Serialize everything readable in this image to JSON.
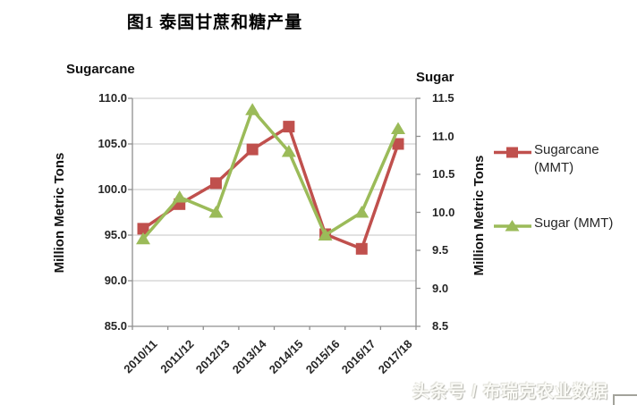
{
  "title": "图1  泰国甘蔗和糖产量",
  "watermark": "头条号 / 布瑞克农业数据",
  "legend": {
    "sugarcane_label": "Sugarcane (MMT)",
    "sugar_label": "Sugar (MMT)"
  },
  "colors": {
    "sugarcane": "#c0504d",
    "sugar": "#9bbb59",
    "gridline": "#c6c6c6",
    "axis_line": "#8f8f8f",
    "text": "#262626",
    "watermark": "#fbfbf7"
  },
  "chart_data": {
    "type": "line",
    "title": "图1  泰国甘蔗和糖产量",
    "categories": [
      "2010/11",
      "2011/12",
      "2012/13",
      "2013/14",
      "2014/15",
      "2015/16",
      "2016/17",
      "2017/18"
    ],
    "series": [
      {
        "name": "Sugarcane (MMT)",
        "axis": "left",
        "color": "#c0504d",
        "marker": "square",
        "values": [
          95.7,
          98.4,
          100.7,
          104.4,
          106.9,
          95.1,
          93.5,
          105.0
        ]
      },
      {
        "name": "Sugar (MMT)",
        "axis": "right",
        "color": "#9bbb59",
        "marker": "triangle",
        "values": [
          9.65,
          10.2,
          10.0,
          11.35,
          10.8,
          9.7,
          10.0,
          11.1
        ]
      }
    ],
    "left_axis": {
      "title": "Sugarcane",
      "unit": "Million Metric Tons",
      "min": 85.0,
      "max": 110.0,
      "ticks": [
        "85.0",
        "90.0",
        "95.0",
        "100.0",
        "105.0",
        "110.0"
      ]
    },
    "right_axis": {
      "title": "Sugar",
      "unit": "Million Metric Tons",
      "min": 8.5,
      "max": 11.5,
      "ticks": [
        "8.5",
        "9.0",
        "9.5",
        "10.0",
        "10.5",
        "11.0",
        "11.5"
      ]
    },
    "grid": true,
    "legend_position": "right"
  }
}
